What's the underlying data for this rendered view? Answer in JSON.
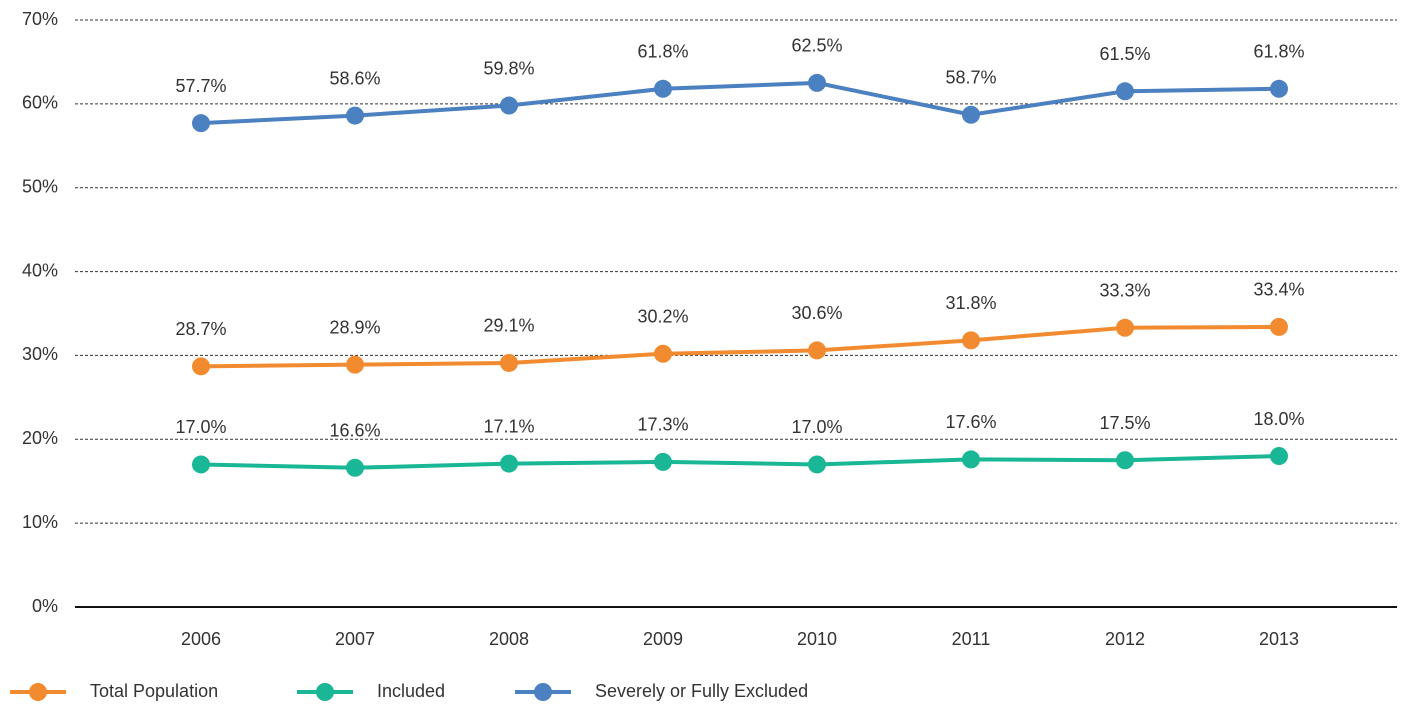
{
  "chart_data": {
    "type": "line",
    "categories": [
      "2006",
      "2007",
      "2008",
      "2009",
      "2010",
      "2011",
      "2012",
      "2013"
    ],
    "series": [
      {
        "name": "Total Population",
        "color": "#f28b30",
        "values": [
          28.7,
          28.9,
          29.1,
          30.2,
          30.6,
          31.8,
          33.3,
          33.4
        ],
        "value_labels": [
          "28.7%",
          "28.9%",
          "29.1%",
          "30.2%",
          "30.6%",
          "31.8%",
          "33.3%",
          "33.4%"
        ]
      },
      {
        "name": "Included",
        "color": "#19b795",
        "values": [
          17.0,
          16.6,
          17.1,
          17.3,
          17.0,
          17.6,
          17.5,
          18.0
        ],
        "value_labels": [
          "17.0%",
          "16.6%",
          "17.1%",
          "17.3%",
          "17.0%",
          "17.6%",
          "17.5%",
          "18.0%"
        ]
      },
      {
        "name": "Severely or Fully Excluded",
        "color": "#4b80c1",
        "values": [
          57.7,
          58.6,
          59.8,
          61.8,
          62.5,
          58.7,
          61.5,
          61.8
        ],
        "value_labels": [
          "57.7%",
          "58.6%",
          "59.8%",
          "61.8%",
          "62.5%",
          "58.7%",
          "61.5%",
          "61.8%"
        ]
      }
    ],
    "ylim": [
      0,
      70
    ],
    "yticks": [
      {
        "value": 0,
        "label": "0%"
      },
      {
        "value": 10,
        "label": "10%"
      },
      {
        "value": 20,
        "label": "20%"
      },
      {
        "value": 30,
        "label": "30%"
      },
      {
        "value": 40,
        "label": "40%"
      },
      {
        "value": 50,
        "label": "50%"
      },
      {
        "value": 60,
        "label": "60%"
      },
      {
        "value": 70,
        "label": "70%"
      }
    ],
    "grid": true,
    "legend": "bottom"
  }
}
